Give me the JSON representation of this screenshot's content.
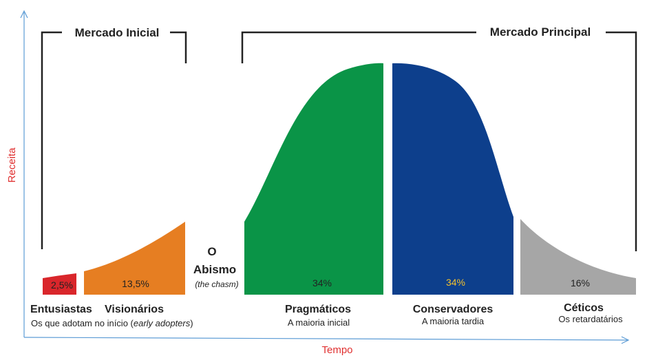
{
  "axes": {
    "y_label": "Receita",
    "x_label": "Tempo",
    "color": "#5b9bd5",
    "label_color": "#e03030"
  },
  "markets": {
    "early": "Mercado Inicial",
    "main": "Mercado Principal"
  },
  "chasm": {
    "line1": "O",
    "line2": "Abismo",
    "note": "(the chasm)"
  },
  "segments": [
    {
      "name": "Entusiastas",
      "desc": "",
      "percent": "2,5%",
      "color": "#d9262b",
      "text_color": "#222222"
    },
    {
      "name": "Visionários",
      "desc": "Os que adotam no início (early adopters)",
      "percent": "13,5%",
      "color": "#e67e22",
      "text_color": "#222222"
    },
    {
      "name": "Pragmáticos",
      "desc": "A maioria inicial",
      "percent": "34%",
      "color": "#0a9447",
      "text_color": "#222222"
    },
    {
      "name": "Conservadores",
      "desc": "A maioria tardia",
      "percent": "34%",
      "color": "#0d3f8c",
      "text_color": "#f2c12e"
    },
    {
      "name": "Céticos",
      "desc": "Os retardatários",
      "percent": "16%",
      "color": "#a6a6a6",
      "text_color": "#222222"
    }
  ]
}
